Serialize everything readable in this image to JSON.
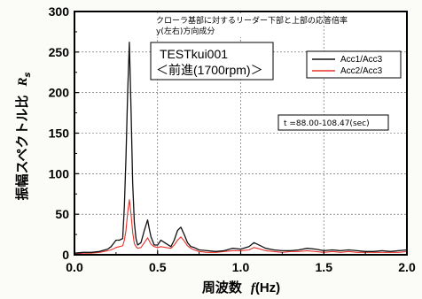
{
  "chart_data": {
    "type": "line",
    "title_lines": [
      "クローラ基部に対するリーダー下部と上部の応答倍率",
      "y(左右)方向成分"
    ],
    "test_name": "TESTkui001",
    "test_condition": "＜前進(1700rpm)＞",
    "time_range_label": "t =88.00-108.47(sec)",
    "xlabel": {
      "text": "周波数",
      "symbol": "f",
      "unit": "(Hz)"
    },
    "ylabel": {
      "text": "振幅スペクトル比",
      "symbol": "R",
      "subscript": "s"
    },
    "xlim": [
      0,
      2.0
    ],
    "ylim": [
      0,
      300
    ],
    "xticks": [
      "0.0",
      "0.5",
      "1.0",
      "1.5",
      "2.0"
    ],
    "yticks": [
      "0",
      "50",
      "100",
      "150",
      "200",
      "250",
      "300"
    ],
    "grid": true,
    "legend_position": "top-right",
    "colors": {
      "Acc1/Acc3": "#111111",
      "Acc2/Acc3": "#e8302a"
    },
    "series": [
      {
        "name": "Acc1/Acc3",
        "x": [
          0.0,
          0.05,
          0.1,
          0.15,
          0.2,
          0.22,
          0.25,
          0.27,
          0.29,
          0.3,
          0.31,
          0.32,
          0.33,
          0.34,
          0.35,
          0.36,
          0.37,
          0.38,
          0.4,
          0.42,
          0.44,
          0.45,
          0.46,
          0.48,
          0.5,
          0.52,
          0.55,
          0.58,
          0.6,
          0.62,
          0.64,
          0.66,
          0.68,
          0.7,
          0.72,
          0.75,
          0.8,
          0.85,
          0.9,
          0.95,
          1.0,
          1.05,
          1.08,
          1.1,
          1.15,
          1.2,
          1.25,
          1.3,
          1.35,
          1.4,
          1.45,
          1.5,
          1.55,
          1.6,
          1.65,
          1.7,
          1.75,
          1.8,
          1.85,
          1.9,
          1.95,
          2.0
        ],
        "y": [
          2,
          3,
          3,
          4,
          7,
          10,
          18,
          18,
          20,
          60,
          120,
          200,
          262,
          180,
          90,
          40,
          20,
          12,
          15,
          30,
          43,
          32,
          22,
          12,
          12,
          18,
          14,
          10,
          18,
          30,
          34,
          25,
          15,
          10,
          9,
          6,
          5,
          4,
          5,
          8,
          7,
          10,
          15,
          13,
          8,
          6,
          5,
          5,
          6,
          8,
          7,
          5,
          6,
          5,
          6,
          5,
          4,
          4,
          5,
          4,
          5,
          6
        ]
      },
      {
        "name": "Acc2/Acc3",
        "x": [
          0.0,
          0.05,
          0.1,
          0.15,
          0.2,
          0.22,
          0.25,
          0.27,
          0.29,
          0.3,
          0.31,
          0.32,
          0.33,
          0.34,
          0.35,
          0.36,
          0.37,
          0.38,
          0.4,
          0.42,
          0.44,
          0.45,
          0.46,
          0.48,
          0.5,
          0.52,
          0.55,
          0.58,
          0.6,
          0.62,
          0.64,
          0.66,
          0.68,
          0.7,
          0.72,
          0.75,
          0.8,
          0.85,
          0.9,
          0.95,
          1.0,
          1.05,
          1.08,
          1.1,
          1.15,
          1.2,
          1.25,
          1.3,
          1.35,
          1.4,
          1.45,
          1.5,
          1.55,
          1.6,
          1.65,
          1.7,
          1.75,
          1.8,
          1.85,
          1.9,
          1.95,
          2.0
        ],
        "y": [
          1,
          2,
          2,
          3,
          5,
          6,
          9,
          10,
          11,
          18,
          30,
          52,
          68,
          50,
          28,
          14,
          10,
          8,
          9,
          15,
          21,
          17,
          13,
          10,
          9,
          10,
          9,
          8,
          12,
          18,
          22,
          17,
          11,
          8,
          6,
          4,
          3,
          3,
          4,
          5,
          5,
          6,
          9,
          8,
          5,
          4,
          3,
          4,
          4,
          5,
          4,
          3,
          4,
          3,
          4,
          3,
          3,
          3,
          3,
          3,
          3,
          4
        ]
      }
    ]
  }
}
